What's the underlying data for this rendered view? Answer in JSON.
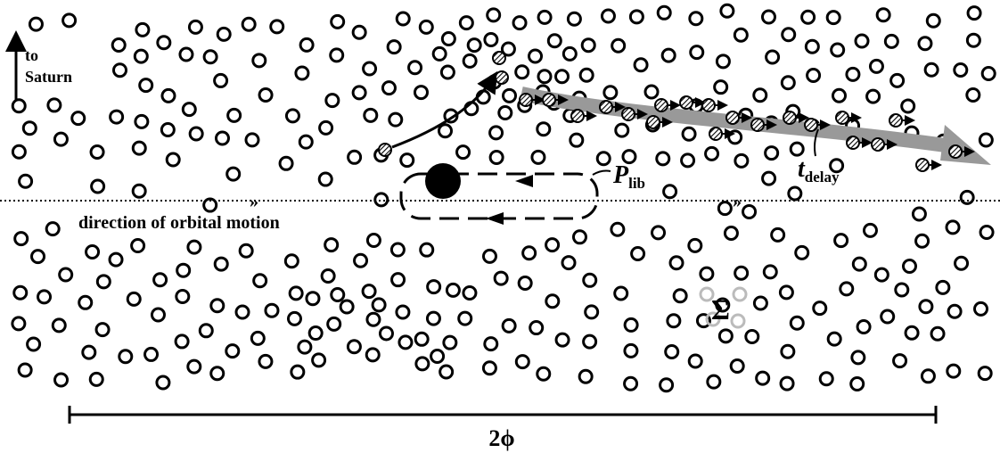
{
  "saturn_label": [
    "to",
    "Saturn"
  ],
  "period_label": {
    "symbol": "P",
    "subscript": "lib"
  },
  "delay_label": {
    "symbol": "t",
    "subscript": "delay"
  },
  "direction_label": "direction of orbital motion",
  "density_label": "Σ",
  "width_label": "2ϕ"
}
